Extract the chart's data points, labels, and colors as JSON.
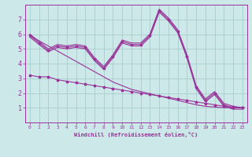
{
  "background_color": "#cce8e8",
  "grid_color": "#aacccc",
  "line_color": "#993399",
  "marker": "*",
  "xlabel": "Windchill (Refroidissement éolien,°C)",
  "xlim": [
    -0.5,
    23.5
  ],
  "ylim": [
    0,
    8
  ],
  "yticks": [
    1,
    2,
    3,
    4,
    5,
    6,
    7
  ],
  "xticks": [
    0,
    1,
    2,
    3,
    4,
    5,
    6,
    7,
    8,
    9,
    10,
    11,
    12,
    13,
    14,
    15,
    16,
    17,
    18,
    19,
    20,
    21,
    22,
    23
  ],
  "x_data": [
    0,
    1,
    2,
    3,
    4,
    5,
    6,
    7,
    8,
    9,
    10,
    11,
    12,
    13,
    14,
    15,
    16,
    17,
    18,
    19,
    20,
    21,
    22,
    23
  ],
  "series_main": [
    5.9,
    5.4,
    4.9,
    5.2,
    5.1,
    5.2,
    5.1,
    4.3,
    3.7,
    4.5,
    5.5,
    5.3,
    5.3,
    5.9,
    7.6,
    7.0,
    6.2,
    4.5,
    2.4,
    1.5,
    2.0,
    1.2,
    1.0,
    1.0
  ],
  "series_lower": [
    3.2,
    3.1,
    3.1,
    2.9,
    2.8,
    2.7,
    2.6,
    2.5,
    2.4,
    2.3,
    2.2,
    2.1,
    2.0,
    1.9,
    1.8,
    1.7,
    1.6,
    1.5,
    1.4,
    1.3,
    1.2,
    1.1,
    1.05,
    1.0
  ],
  "series_upper_env": [
    6.0,
    5.5,
    5.0,
    5.3,
    5.2,
    5.3,
    5.2,
    4.4,
    3.8,
    4.6,
    5.6,
    5.4,
    5.4,
    6.0,
    7.7,
    7.1,
    6.3,
    4.6,
    2.5,
    1.6,
    2.1,
    1.3,
    1.1,
    1.0
  ],
  "series_lower_env": [
    5.8,
    5.3,
    4.8,
    5.1,
    5.0,
    5.1,
    5.0,
    4.2,
    3.6,
    4.4,
    5.4,
    5.2,
    5.2,
    5.8,
    7.5,
    6.9,
    6.1,
    4.4,
    2.3,
    1.4,
    1.9,
    1.1,
    0.9,
    0.9
  ],
  "series_straight": [
    5.9,
    5.55,
    5.2,
    4.85,
    4.5,
    4.15,
    3.8,
    3.45,
    3.1,
    2.75,
    2.5,
    2.25,
    2.1,
    1.95,
    1.8,
    1.65,
    1.5,
    1.35,
    1.2,
    1.1,
    1.05,
    1.0,
    1.0,
    1.0
  ]
}
